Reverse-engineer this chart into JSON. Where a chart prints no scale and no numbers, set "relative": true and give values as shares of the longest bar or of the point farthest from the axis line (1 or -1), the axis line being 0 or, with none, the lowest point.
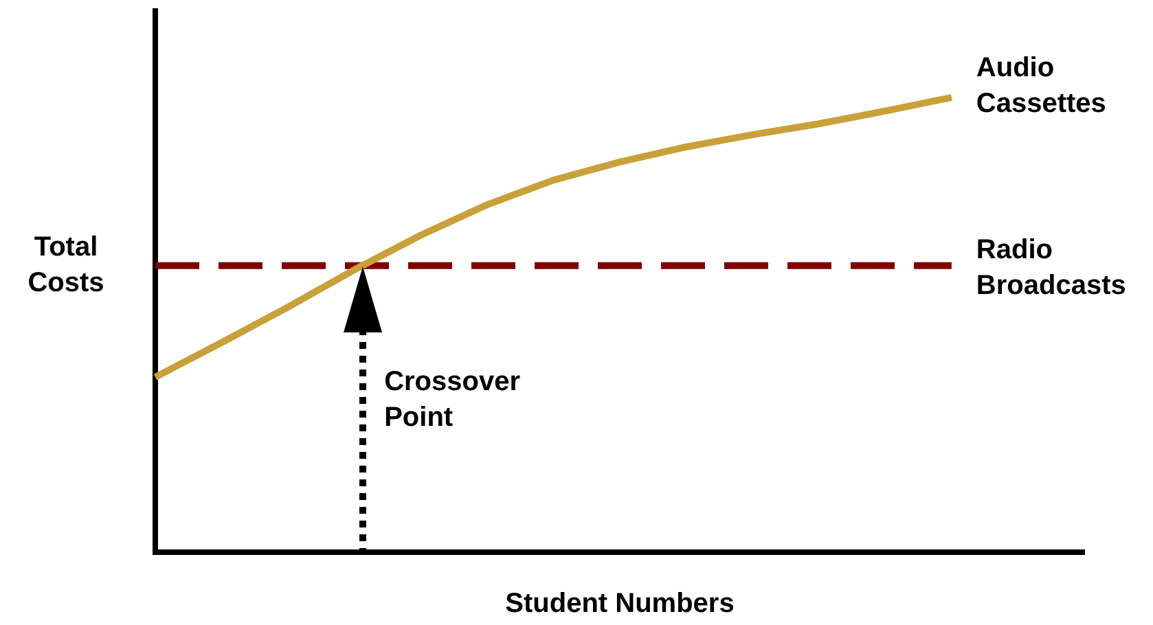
{
  "chart_data": {
    "type": "line",
    "xlabel": "Student Numbers",
    "ylabel": "Total Costs",
    "relative": true,
    "grid": false,
    "legend": false,
    "marker": "none",
    "tick_labels": false,
    "categories": [
      null,
      null,
      null,
      null,
      null,
      null,
      null,
      null,
      null,
      null,
      null,
      null,
      null,
      null,
      null
    ],
    "series": [
      {
        "name": "Audio Cassettes",
        "color": "#c9a13a",
        "line_style": "solid",
        "values": [
          0.385,
          0.461,
          0.539,
          0.621,
          0.697,
          0.764,
          0.818,
          0.858,
          0.891,
          0.918,
          0.942,
          0.97,
          1.0,
          null,
          null
        ]
      },
      {
        "name": "Radio Broadcasts",
        "color": "#800000",
        "line_style": "dashed",
        "values": [
          0.63,
          0.63,
          0.63,
          0.63,
          0.63,
          0.63,
          0.63,
          0.63,
          0.63,
          0.63,
          0.63,
          0.63,
          0.63,
          null,
          null
        ]
      }
    ],
    "annotations": [
      "Crossover Point"
    ]
  }
}
